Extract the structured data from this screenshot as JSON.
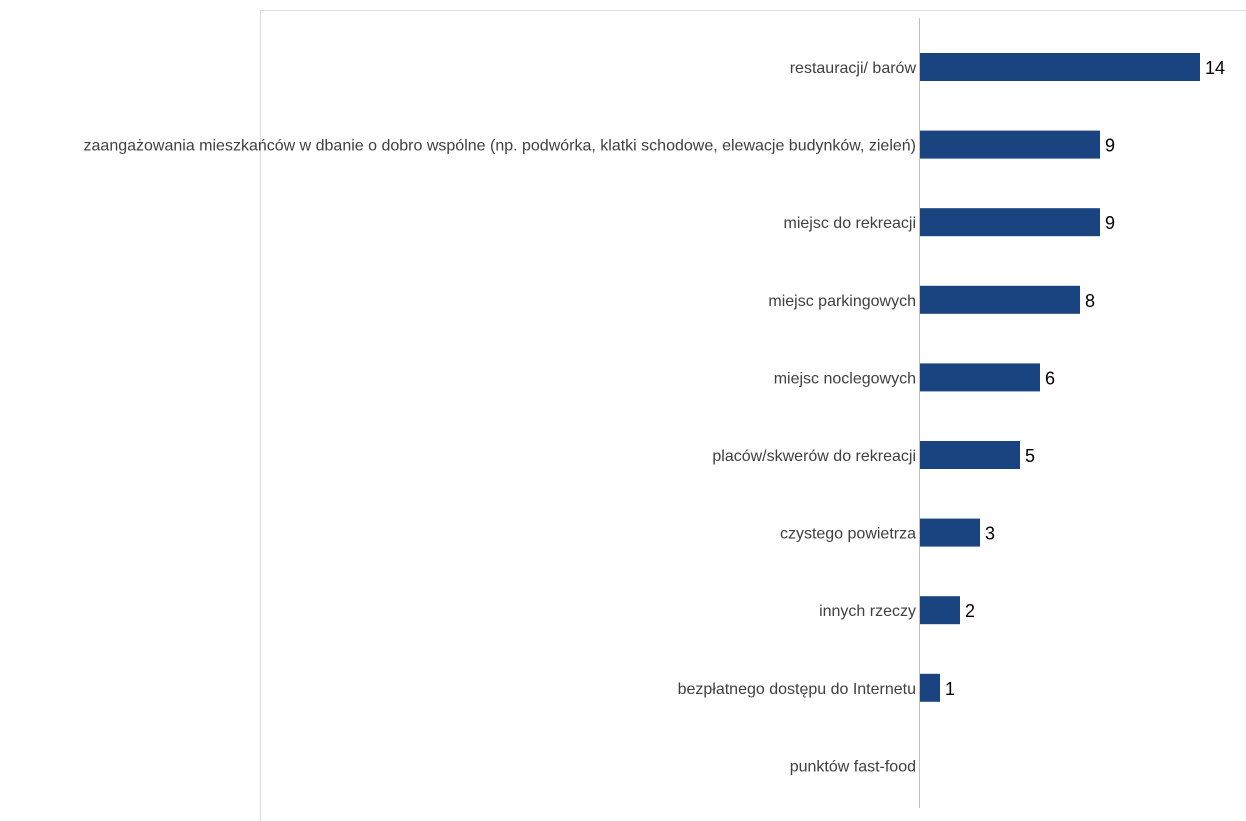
{
  "colors": {
    "bar": "#1a4480",
    "frame": "#d9d9d9",
    "axis": "#c0c0c0",
    "category_text": "#404040",
    "value_text": "#000000"
  },
  "chart_data": {
    "type": "bar",
    "orientation": "horizontal",
    "title": "",
    "xlabel": "",
    "ylabel": "",
    "grid": false,
    "legend": "none",
    "xlim": [
      0,
      16
    ],
    "categories": [
      "restauracji/ barów",
      "zaangażowania mieszkańców w dbanie o dobro wspólne (np. podwórka, klatki schodowe, elewacje budynków, zieleń)",
      "miejsc do rekreacji",
      "miejsc parkingowych",
      "miejsc noclegowych",
      "placów/skwerów do rekreacji",
      "czystego powietrza",
      "innych rzeczy",
      "bezpłatnego dostępu do Internetu",
      "punktów fast-food"
    ],
    "values": [
      14,
      9,
      9,
      8,
      6,
      5,
      3,
      2,
      1,
      0
    ],
    "data_labels": [
      "14",
      "9",
      "9",
      "8",
      "6",
      "5",
      "3",
      "2",
      "1",
      ""
    ]
  }
}
